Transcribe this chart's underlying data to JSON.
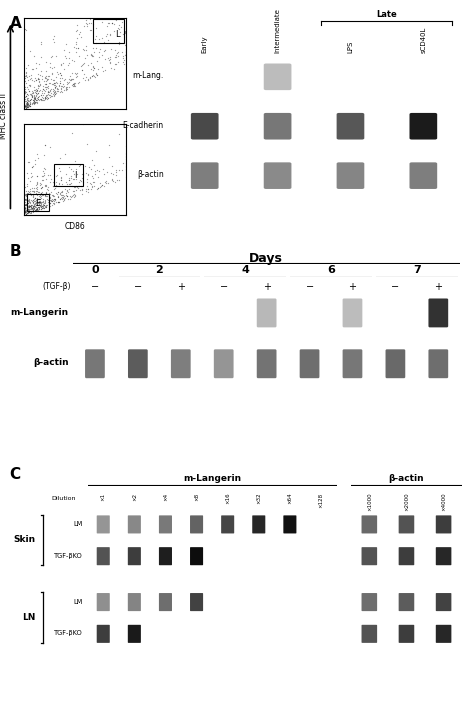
{
  "panel_a_label": "A",
  "panel_b_label": "B",
  "panel_c_label": "C",
  "scatter_ylabel": "MHC class II",
  "scatter_xlabel": "CD86",
  "gel_a_labels_rotated": [
    "Early",
    "Intermediate",
    "LPS",
    "sCD40L"
  ],
  "gel_a_late_bracket": "Late",
  "gel_a_row_labels": [
    "m-Lang.",
    "E-cadherin",
    "β-actin"
  ],
  "panel_b_title": "Days",
  "panel_b_days": [
    "0",
    "2",
    "4",
    "6",
    "7"
  ],
  "panel_b_tgf_label": "(TGF-β)",
  "panel_b_tgf_signs": [
    "−",
    "−",
    "+",
    "−",
    "+",
    "−",
    "+",
    "−",
    "+"
  ],
  "panel_b_row_labels": [
    "m-Langerin",
    "β-actin"
  ],
  "panel_c_title_langerin": "m-Langerin",
  "panel_c_title_actin": "β-actin",
  "panel_c_dilution_label": "Dilution",
  "panel_c_dilutions_langerin": [
    "×1",
    "×2",
    "×4",
    "×8",
    "×16",
    "×32",
    "×64",
    "×128"
  ],
  "panel_c_dilutions_actin": [
    "×1000",
    "×2000",
    "×4000"
  ],
  "panel_c_skin_label": "Skin",
  "panel_c_ln_label": "LN",
  "panel_c_lm_label": "LM",
  "panel_c_tgfbko_label": "TGF-βKO",
  "bg_color": "#ffffff",
  "gel_bg": "#0a0a0a",
  "fig_width": 4.74,
  "fig_height": 7.06,
  "dpi": 100
}
